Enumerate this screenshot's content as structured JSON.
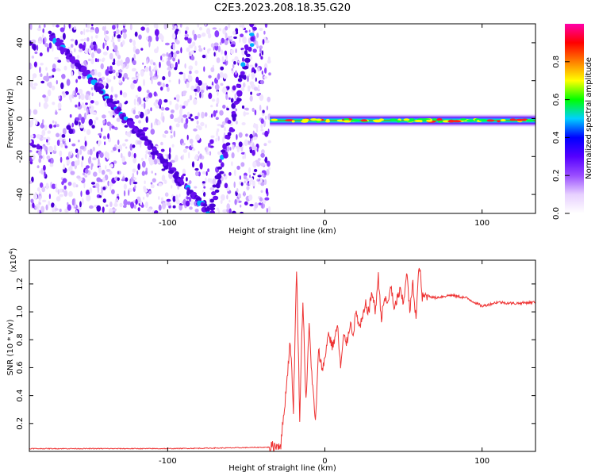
{
  "title": "C2E3.2023.208.18.35.G20",
  "chart_data": [
    {
      "type": "heatmap",
      "xlabel": "Height of straight line (km)",
      "ylabel": "Frequency (Hz)",
      "xlim": [
        -188,
        134
      ],
      "ylim": [
        -50,
        50
      ],
      "x_ticks": [
        -100,
        0,
        100
      ],
      "y_ticks": [
        -40,
        -20,
        0,
        20,
        40
      ],
      "grid": false,
      "colorbar": {
        "label": "Normalized spectral amplitude",
        "range": [
          0.0,
          1.0
        ],
        "ticks": [
          0.0,
          0.2,
          0.4,
          0.6,
          0.8
        ],
        "colors": [
          "#ffffff",
          "#e7d0ff",
          "#9a4dff",
          "#5500ff",
          "#0000ff",
          "#00d0ff",
          "#00ff00",
          "#ffff00",
          "#ff7f00",
          "#ff0000",
          "#ff00aa"
        ]
      },
      "features": {
        "noise_region_x": [
          -188,
          -35
        ],
        "tone_line": {
          "x": [
            -35,
            134
          ],
          "freq_hz": -1,
          "amplitude_range": [
            0.3,
            1.0
          ]
        },
        "descending_trace": {
          "x": [
            -175,
            -73
          ],
          "freq_hz": [
            45,
            -50
          ]
        },
        "ascending_trace": {
          "x": [
            -73,
            -45
          ],
          "freq_hz": [
            -50,
            50
          ]
        }
      }
    },
    {
      "type": "line",
      "xlabel": "Height of straight line (km)",
      "ylabel": "SNR (10 * v/v)",
      "y_multiplier": "(x10",
      "y_multiplier_exp": "4",
      "xlim": [
        -188,
        134
      ],
      "ylim": [
        0,
        1.37
      ],
      "x_ticks": [
        -100,
        0,
        100
      ],
      "y_ticks": [
        0.2,
        0.4,
        0.6,
        0.8,
        1.0,
        1.2
      ],
      "line_color": "#ee3333",
      "series": [
        {
          "x": [
            -188,
            -150,
            -100,
            -60,
            -35,
            -28,
            -25,
            -22,
            -20,
            -18,
            -16,
            -14,
            -12,
            -10,
            -8,
            -6,
            -4,
            -2,
            0,
            2,
            5,
            8,
            10,
            12,
            14,
            16,
            18,
            20,
            22,
            24,
            26,
            28,
            30,
            32,
            34,
            36,
            38,
            40,
            42,
            44,
            46,
            48,
            50,
            52,
            54,
            56,
            58,
            60,
            62,
            65,
            70,
            80,
            90,
            100,
            110,
            120,
            134
          ],
          "y": [
            0.02,
            0.02,
            0.02,
            0.025,
            0.03,
            0.05,
            0.4,
            0.8,
            0.3,
            1.32,
            0.25,
            1.1,
            0.35,
            0.9,
            0.5,
            0.2,
            0.72,
            0.6,
            0.65,
            0.85,
            0.75,
            0.9,
            0.6,
            0.82,
            0.78,
            0.92,
            0.85,
            1.0,
            0.88,
            0.95,
            1.05,
            1.0,
            1.15,
            1.0,
            1.25,
            0.95,
            1.1,
            1.05,
            1.2,
            1.0,
            1.1,
            1.15,
            1.05,
            1.3,
            1.0,
            1.2,
            0.95,
            1.35,
            1.1,
            1.12,
            1.1,
            1.12,
            1.1,
            1.04,
            1.07,
            1.06,
            1.07
          ]
        }
      ]
    }
  ]
}
